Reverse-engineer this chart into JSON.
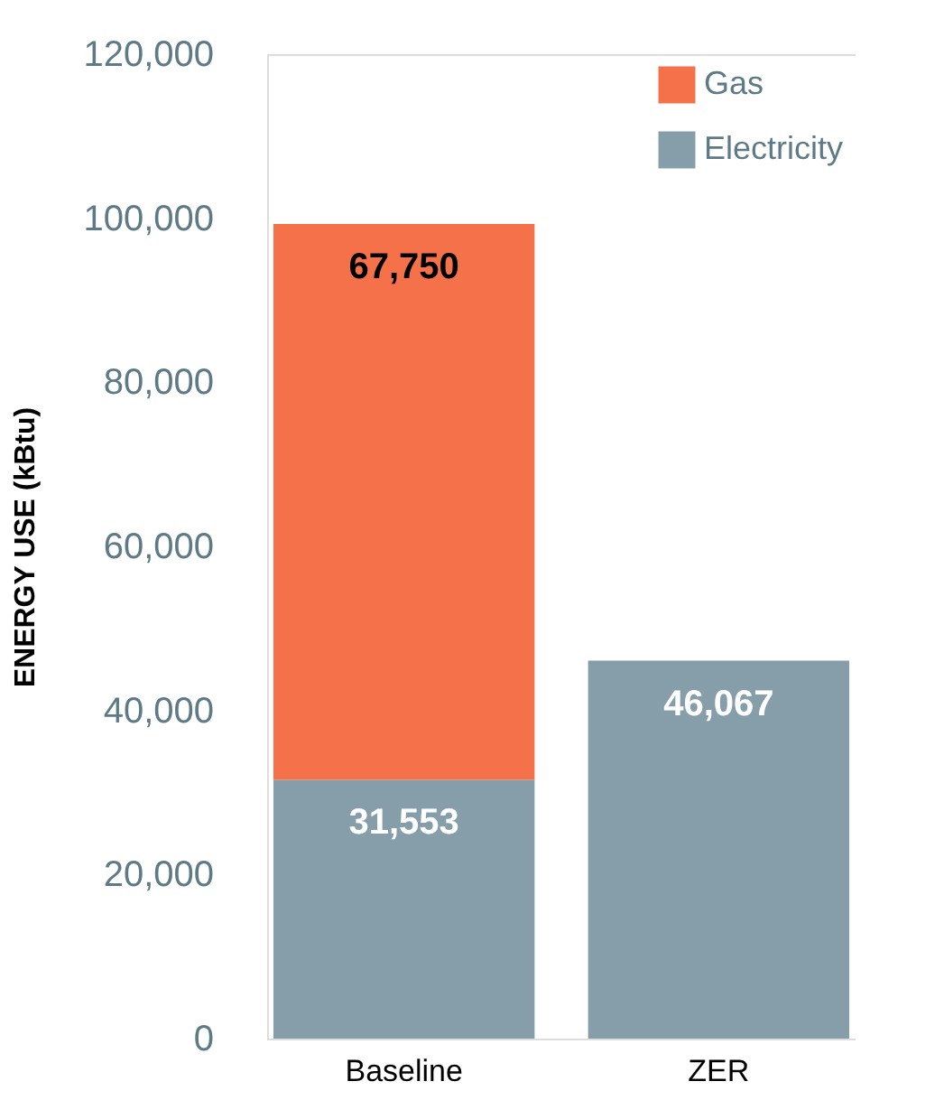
{
  "chart_data": {
    "type": "bar",
    "ylabel": "ENERGY USE (kBtu)",
    "categories": [
      "Baseline",
      "ZER"
    ],
    "stacked": true,
    "series": [
      {
        "name": "Electricity",
        "color": "#859ea9",
        "values": [
          31553,
          46067
        ],
        "value_labels": [
          "31,553",
          "46,067"
        ]
      },
      {
        "name": "Gas",
        "color": "#f4714a",
        "values": [
          67750,
          null
        ],
        "value_labels": [
          "67,750",
          null
        ]
      }
    ],
    "ylim": [
      0,
      120000
    ],
    "yticks": [
      0,
      {
        "value": 20000,
        "label": "20,000"
      },
      {
        "value": 40000,
        "label": "40,000"
      },
      {
        "value": 60000,
        "label": "60,000"
      },
      {
        "value": 80000,
        "label": "80,000"
      },
      {
        "value": 100000,
        "label": "100,000"
      },
      {
        "value": 120000,
        "label": "120,000"
      }
    ],
    "grid": false,
    "legend": "top right"
  }
}
